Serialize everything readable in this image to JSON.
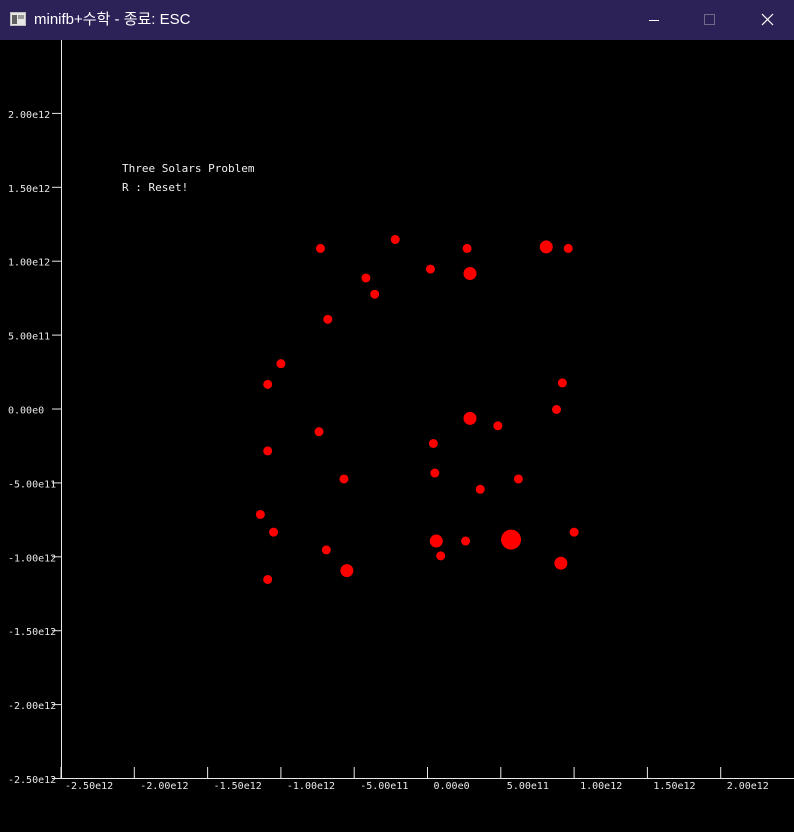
{
  "window": {
    "title": "minifb+수학 - 종료: ESC",
    "icon": "app-window-icon",
    "controls": {
      "minimize_icon": "minimize-icon",
      "maximize_icon": "maximize-icon",
      "close_icon": "close-icon"
    },
    "titlebar_color": "#2d2258"
  },
  "overlay": {
    "title": "Three Solars Problem",
    "reset_hint": "R : Reset!"
  },
  "chart_data": {
    "type": "scatter",
    "xlim": [
      -2500000000000.0,
      2500000000000.0
    ],
    "ylim": [
      -2500000000000.0,
      2500000000000.0
    ],
    "x_ticks": [
      {
        "value": -2500000000000.0,
        "label": "-2.50e12"
      },
      {
        "value": -2000000000000.0,
        "label": "-2.00e12"
      },
      {
        "value": -1500000000000.0,
        "label": "-1.50e12"
      },
      {
        "value": -1000000000000.0,
        "label": "-1.00e12"
      },
      {
        "value": -500000000000.0,
        "label": "-5.00e11"
      },
      {
        "value": 0,
        "label": "0.00e0"
      },
      {
        "value": 500000000000.0,
        "label": "5.00e11"
      },
      {
        "value": 1000000000000.0,
        "label": "1.00e12"
      },
      {
        "value": 1500000000000.0,
        "label": "1.50e12"
      },
      {
        "value": 2000000000000.0,
        "label": "2.00e12"
      }
    ],
    "y_ticks": [
      {
        "value": 2000000000000.0,
        "label": "2.00e12"
      },
      {
        "value": 1500000000000.0,
        "label": "1.50e12"
      },
      {
        "value": 1000000000000.0,
        "label": "1.00e12"
      },
      {
        "value": 500000000000.0,
        "label": "5.00e11"
      },
      {
        "value": 0,
        "label": "0.00e0"
      },
      {
        "value": -500000000000.0,
        "label": "-5.00e11"
      },
      {
        "value": -1000000000000.0,
        "label": "-1.00e12"
      },
      {
        "value": -1500000000000.0,
        "label": "-1.50e12"
      },
      {
        "value": -2000000000000.0,
        "label": "-2.00e12"
      },
      {
        "value": -2500000000000.0,
        "label": "-2.50e12"
      }
    ],
    "point_color": "#ff0000",
    "points": [
      {
        "x": -730000000000.0,
        "y": 1090000000000.0,
        "size": 1
      },
      {
        "x": -220000000000.0,
        "y": 1150000000000.0,
        "size": 1
      },
      {
        "x": 270000000000.0,
        "y": 1090000000000.0,
        "size": 1
      },
      {
        "x": 810000000000.0,
        "y": 1100000000000.0,
        "size": 2
      },
      {
        "x": 960000000000.0,
        "y": 1090000000000.0,
        "size": 1
      },
      {
        "x": 20000000000.0,
        "y": 950000000000.0,
        "size": 1
      },
      {
        "x": 290000000000.0,
        "y": 920000000000.0,
        "size": 2
      },
      {
        "x": -420000000000.0,
        "y": 890000000000.0,
        "size": 1
      },
      {
        "x": -360000000000.0,
        "y": 780000000000.0,
        "size": 1
      },
      {
        "x": -680000000000.0,
        "y": 610000000000.0,
        "size": 1
      },
      {
        "x": -1000000000000.0,
        "y": 310000000000.0,
        "size": 1
      },
      {
        "x": -1090000000000.0,
        "y": 170000000000.0,
        "size": 1
      },
      {
        "x": 920000000000.0,
        "y": 180000000000.0,
        "size": 1
      },
      {
        "x": 880000000000.0,
        "y": 0,
        "size": 1
      },
      {
        "x": 290000000000.0,
        "y": -60000000000.0,
        "size": 2
      },
      {
        "x": 480000000000.0,
        "y": -110000000000.0,
        "size": 1
      },
      {
        "x": -740000000000.0,
        "y": -150000000000.0,
        "size": 1
      },
      {
        "x": 40000000000.0,
        "y": -230000000000.0,
        "size": 1
      },
      {
        "x": -1090000000000.0,
        "y": -280000000000.0,
        "size": 1
      },
      {
        "x": 50000000000.0,
        "y": -430000000000.0,
        "size": 1
      },
      {
        "x": -570000000000.0,
        "y": -470000000000.0,
        "size": 1
      },
      {
        "x": 620000000000.0,
        "y": -470000000000.0,
        "size": 1
      },
      {
        "x": 360000000000.0,
        "y": -540000000000.0,
        "size": 1
      },
      {
        "x": -1140000000000.0,
        "y": -710000000000.0,
        "size": 1
      },
      {
        "x": -1050000000000.0,
        "y": -830000000000.0,
        "size": 1
      },
      {
        "x": 1000000000000.0,
        "y": -830000000000.0,
        "size": 1
      },
      {
        "x": 570000000000.0,
        "y": -880000000000.0,
        "size": 3
      },
      {
        "x": 60000000000.0,
        "y": -890000000000.0,
        "size": 2
      },
      {
        "x": 260000000000.0,
        "y": -890000000000.0,
        "size": 1
      },
      {
        "x": -690000000000.0,
        "y": -950000000000.0,
        "size": 1
      },
      {
        "x": 90000000000.0,
        "y": -990000000000.0,
        "size": 1
      },
      {
        "x": 910000000000.0,
        "y": -1040000000000.0,
        "size": 2
      },
      {
        "x": -550000000000.0,
        "y": -1090000000000.0,
        "size": 2
      },
      {
        "x": -1090000000000.0,
        "y": -1150000000000.0,
        "size": 1
      }
    ]
  }
}
